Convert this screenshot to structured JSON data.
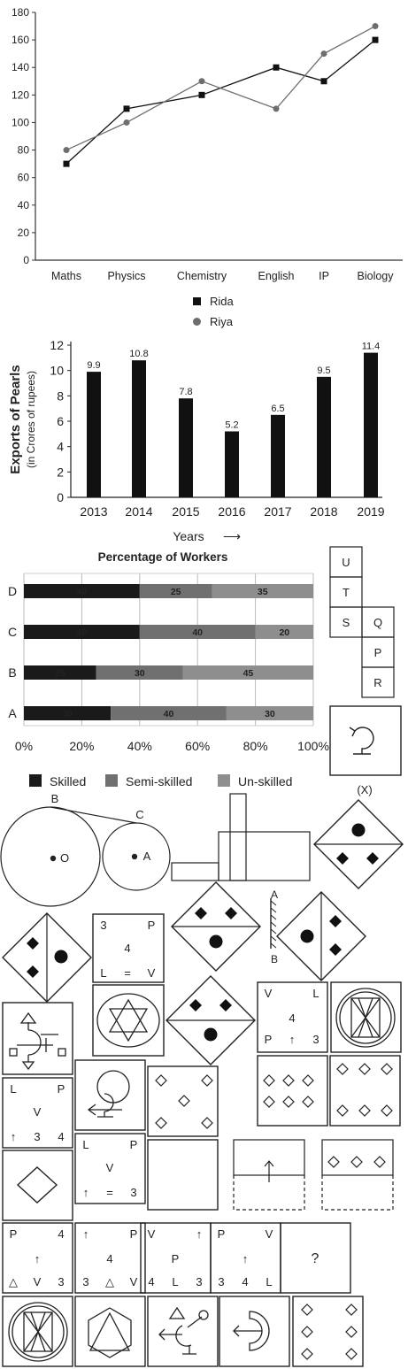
{
  "chart_data": [
    {
      "type": "line",
      "categories": [
        "Maths",
        "Physics",
        "Chemistry",
        "English",
        "IP",
        "Biology"
      ],
      "series": [
        {
          "name": "Rida",
          "values": [
            70,
            110,
            120,
            140,
            130,
            160
          ],
          "color": "#111111",
          "marker": "square"
        },
        {
          "name": "Riya",
          "values": [
            80,
            100,
            130,
            110,
            150,
            170
          ],
          "color": "#6e6e6e",
          "marker": "circle"
        }
      ],
      "yticks": [
        "0",
        "20",
        "40",
        "60",
        "80",
        "100",
        "120",
        "140",
        "160",
        "180"
      ],
      "ylim": [
        0,
        180
      ],
      "legend": "bottom"
    },
    {
      "type": "bar",
      "categories": [
        "2013",
        "2014",
        "2015",
        "2016",
        "2017",
        "2018",
        "2019"
      ],
      "values": [
        9.9,
        10.8,
        7.8,
        5.2,
        6.5,
        9.5,
        11.4
      ],
      "value_labels": [
        "9.9",
        "10.8",
        "7.8",
        "5.2",
        "6.5",
        "9.5",
        "11.4"
      ],
      "yticks": [
        "0",
        "2",
        "4",
        "6",
        "8",
        "10",
        "12"
      ],
      "ylim": [
        0,
        12
      ],
      "ylabel": "Exports of Pearls",
      "ylabel_sub": "(in Crores of rupees)",
      "xlabel": "Years",
      "xlabel_arrow": "⟶",
      "color": "#111111"
    },
    {
      "type": "bar",
      "orientation": "horizontal-stacked",
      "title": "Percentage of Workers",
      "categories": [
        "D",
        "C",
        "B",
        "A"
      ],
      "series": [
        {
          "name": "Skilled",
          "values": [
            40,
            40,
            25,
            30
          ],
          "color": "#1a1a1a"
        },
        {
          "name": "Semi-skilled",
          "values": [
            25,
            40,
            30,
            40
          ],
          "color": "#707070"
        },
        {
          "name": "Un-skilled",
          "values": [
            35,
            20,
            45,
            30
          ],
          "color": "#8e8e8e"
        }
      ],
      "xticks": [
        "0%",
        "20%",
        "40%",
        "60%",
        "80%",
        "100%"
      ],
      "xlim": [
        0,
        100
      ],
      "legend": "bottom"
    }
  ],
  "puzzles": {
    "net_letters": [
      "U",
      "T",
      "S",
      "Q",
      "P",
      "R"
    ],
    "x_label": "(X)",
    "circle_labels": [
      "B",
      "C",
      "O",
      "A"
    ],
    "mirror_labels": [
      "A",
      "B"
    ],
    "card_a": [
      "3",
      "P",
      "4",
      "L",
      "=",
      "V"
    ],
    "card_b": [
      "V",
      "L",
      "4",
      "P",
      "↑",
      "3"
    ],
    "card_c": [
      "L",
      "P",
      "V",
      "↑",
      "3",
      "4"
    ],
    "card_d": [
      "L",
      "P",
      "V",
      "↑",
      "=",
      "3"
    ],
    "row": [
      [
        "P",
        "4",
        "↑",
        "△",
        "V",
        "3"
      ],
      [
        "↑",
        "P",
        "4",
        "3",
        "△",
        "V"
      ],
      [
        "V",
        "↑",
        "P",
        "4",
        "L",
        "3"
      ],
      [
        "P",
        "V",
        "↑",
        "3",
        "4",
        "L"
      ]
    ],
    "question": "?"
  }
}
